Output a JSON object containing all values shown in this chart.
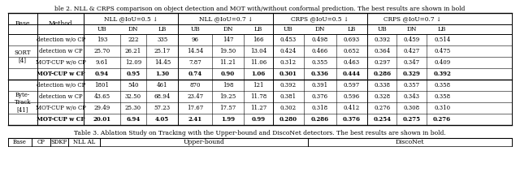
{
  "title": "ble 2. NLL & CRPS comparison on object detection and MOT with/without conformal prediction. The best results are shown in bold",
  "caption": "Table 3. Ablation Study on Tracking with the Upper-bound and DiscoNet detectors. The best results are shown in bold.",
  "col_headers": [
    [
      "",
      "",
      "NLL @IoU=0.5 ↓",
      "",
      "",
      "NLL @IoU=0.7 ↓",
      "",
      "",
      "CRPS @IoU=0.5 ↓",
      "",
      "",
      "CRPS @IoU=0.7 ↓",
      "",
      ""
    ],
    [
      "Base",
      "Method",
      "UB",
      "DN",
      "LB",
      "UB",
      "DN",
      "LB",
      "UB",
      "DN",
      "LB",
      "UB",
      "DN",
      "LB"
    ]
  ],
  "rows": [
    {
      "base": "SORT\n[4]",
      "method": "detection w/o CP",
      "bold": false,
      "vals": [
        "193",
        "222",
        "335",
        "96",
        "147",
        "166",
        "0.453",
        "0.498",
        "0.693",
        "0.392",
        "0.459",
        "0.514"
      ]
    },
    {
      "base": "",
      "method": "detection w CP",
      "bold": false,
      "vals": [
        "25.70",
        "26.21",
        "25.17",
        "14.54",
        "19.50",
        "13.04",
        "0.424",
        "0.466",
        "0.652",
        "0.364",
        "0.427",
        "0.475"
      ]
    },
    {
      "base": "",
      "method": "MOT-CUP w/o CP",
      "bold": false,
      "vals": [
        "9.61",
        "12.09",
        "14.45",
        "7.87",
        "11.21",
        "11.06",
        "0.312",
        "0.355",
        "0.463",
        "0.297",
        "0.347",
        "0.409"
      ]
    },
    {
      "base": "",
      "method": "MOT-CUP w CP",
      "bold": true,
      "vals": [
        "0.94",
        "0.95",
        "1.30",
        "0.74",
        "0.90",
        "1.06",
        "0.301",
        "0.336",
        "0.444",
        "0.286",
        "0.329",
        "0.392"
      ]
    },
    {
      "base": "Byte-\nTrack\n[41]",
      "method": "detection w/o CP",
      "bold": false,
      "vals": [
        "1801",
        "540",
        "461",
        "870",
        "198",
        "121",
        "0.392",
        "0.391",
        "0.597",
        "0.338",
        "0.357",
        "0.358"
      ]
    },
    {
      "base": "",
      "method": "detection w CP",
      "bold": false,
      "vals": [
        "43.65",
        "32.50",
        "68.94",
        "23.47",
        "19.25",
        "11.78",
        "0.381",
        "0.376",
        "0.596",
        "0.328",
        "0.343",
        "0.358"
      ]
    },
    {
      "base": "",
      "method": "MOT-CUP w/o CP",
      "bold": false,
      "vals": [
        "29.49",
        "25.30",
        "57.23",
        "17.67",
        "17.57",
        "11.27",
        "0.302",
        "0.318",
        "0.412",
        "0.276",
        "0.308",
        "0.310"
      ]
    },
    {
      "base": "",
      "method": "MOT-CUP w CP",
      "bold": true,
      "vals": [
        "20.01",
        "6.94",
        "4.05",
        "2.41",
        "1.99",
        "0.99",
        "0.280",
        "0.286",
        "0.376",
        "0.254",
        "0.275",
        "0.276"
      ]
    }
  ],
  "table3_headers": [
    "Base",
    "CP",
    "SDKF",
    "NLL AL",
    "Upper-bound",
    "DiscoNet"
  ],
  "bg_color": "#ffffff"
}
